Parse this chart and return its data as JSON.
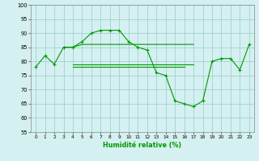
{
  "x": [
    0,
    1,
    2,
    3,
    4,
    5,
    6,
    7,
    8,
    9,
    10,
    11,
    12,
    13,
    14,
    15,
    16,
    17,
    18,
    19,
    20,
    21,
    22,
    23
  ],
  "line_main": [
    78,
    82,
    79,
    85,
    85,
    87,
    90,
    91,
    91,
    91,
    87,
    85,
    84,
    76,
    75,
    66,
    65,
    64,
    66,
    80,
    81,
    81,
    77,
    86
  ],
  "line_upper": [
    null,
    null,
    null,
    85,
    85,
    86,
    86,
    86,
    86,
    86,
    86,
    86,
    86,
    86,
    86,
    86,
    86,
    86,
    null,
    null,
    null,
    null,
    null,
    null
  ],
  "line_mid1": [
    78,
    null,
    null,
    null,
    79,
    79,
    79,
    79,
    79,
    79,
    79,
    79,
    79,
    79,
    79,
    79,
    79,
    79,
    null,
    null,
    null,
    null,
    null,
    null
  ],
  "line_mid2": [
    78,
    null,
    null,
    null,
    78,
    78,
    78,
    78,
    78,
    78,
    78,
    78,
    78,
    78,
    78,
    78,
    78,
    null,
    null,
    null,
    null,
    null,
    null,
    null
  ],
  "bg_color": "#d4f0f0",
  "grid_color": "#99cccc",
  "line_color": "#009900",
  "xlabel": "Humidité relative (%)",
  "ylim": [
    55,
    100
  ],
  "xlim": [
    -0.5,
    23.5
  ],
  "yticks": [
    55,
    60,
    65,
    70,
    75,
    80,
    85,
    90,
    95,
    100
  ],
  "xticks": [
    0,
    1,
    2,
    3,
    4,
    5,
    6,
    7,
    8,
    9,
    10,
    11,
    12,
    13,
    14,
    15,
    16,
    17,
    18,
    19,
    20,
    21,
    22,
    23
  ]
}
